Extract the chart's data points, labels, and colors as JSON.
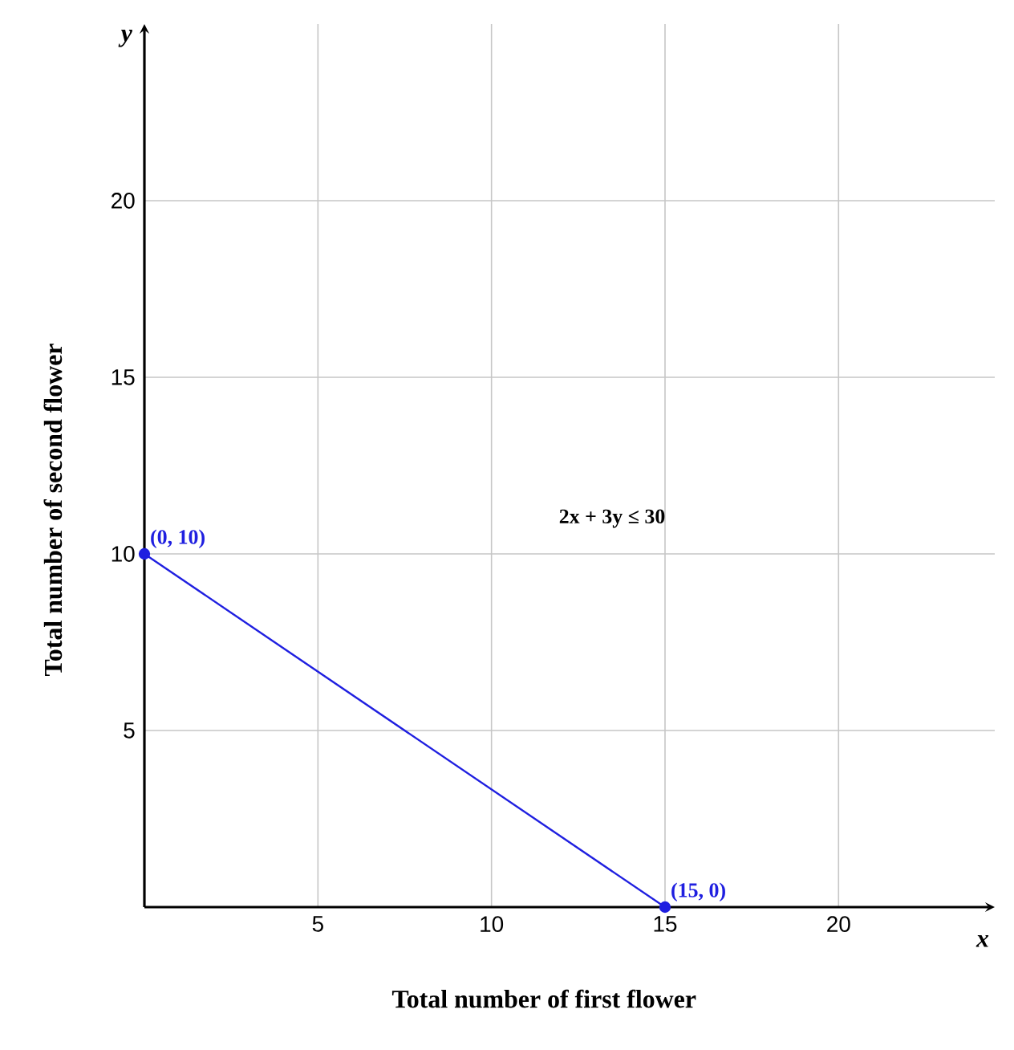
{
  "chart_data": {
    "type": "line",
    "xlabel": "Total number of first flower",
    "ylabel": "Total number of second flower",
    "x": [
      0,
      15
    ],
    "series": [
      {
        "color": "#1f1fe0",
        "values": [
          10,
          0
        ]
      }
    ],
    "xlim": [
      0,
      24.5
    ],
    "ylim": [
      0,
      25
    ],
    "xticks": [
      5,
      10,
      15,
      20
    ],
    "yticks": [
      5,
      10,
      15,
      20
    ],
    "grid": true,
    "marker": "circle",
    "annotations": [
      "*x*",
      "*y*",
      "2x + 3y ≤ 30",
      {
        "text": "(0, 10)",
        "x": 0,
        "y": 10
      },
      {
        "text": "(15, 0)",
        "x": 15,
        "y": 0
      }
    ]
  }
}
